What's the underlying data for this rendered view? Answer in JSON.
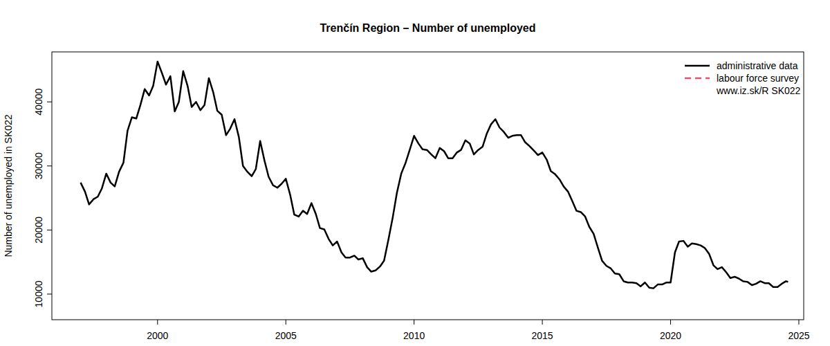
{
  "chart_data": {
    "type": "line",
    "title": "Trenčín Region – Number of unemployed",
    "y_label": "Number of unemployed in SK022",
    "annotation": "www.iz.sk/R SK022",
    "legend": "topright",
    "xlim": [
      1995.88,
      2025.19
    ],
    "xticks": [
      2000,
      2005,
      2010,
      2015,
      2020,
      2025
    ],
    "ylim": [
      6000,
      47800
    ],
    "yticks": [
      10000,
      20000,
      30000,
      40000
    ],
    "x": [
      1997,
      1997.17,
      1997.33,
      1997.5,
      1997.67,
      1997.83,
      1998,
      1998.17,
      1998.33,
      1998.5,
      1998.67,
      1998.83,
      1999,
      1999.17,
      1999.33,
      1999.5,
      1999.67,
      1999.83,
      2000,
      2000.17,
      2000.33,
      2000.5,
      2000.67,
      2000.83,
      2001,
      2001.17,
      2001.33,
      2001.5,
      2001.67,
      2001.83,
      2002,
      2002.17,
      2002.33,
      2002.5,
      2002.67,
      2002.83,
      2003,
      2003.17,
      2003.33,
      2003.5,
      2003.67,
      2003.83,
      2004,
      2004.17,
      2004.33,
      2004.5,
      2004.67,
      2004.83,
      2005,
      2005.17,
      2005.33,
      2005.5,
      2005.67,
      2005.83,
      2006,
      2006.17,
      2006.33,
      2006.5,
      2006.67,
      2006.83,
      2007,
      2007.17,
      2007.33,
      2007.5,
      2007.67,
      2007.83,
      2008,
      2008.17,
      2008.33,
      2008.5,
      2008.67,
      2008.83,
      2009,
      2009.17,
      2009.33,
      2009.5,
      2009.67,
      2009.83,
      2010,
      2010.17,
      2010.33,
      2010.5,
      2010.67,
      2010.83,
      2011,
      2011.17,
      2011.33,
      2011.5,
      2011.67,
      2011.83,
      2012,
      2012.17,
      2012.33,
      2012.5,
      2012.67,
      2012.83,
      2013,
      2013.17,
      2013.33,
      2013.5,
      2013.67,
      2013.83,
      2014,
      2014.17,
      2014.33,
      2014.5,
      2014.67,
      2014.83,
      2015,
      2015.17,
      2015.33,
      2015.5,
      2015.67,
      2015.83,
      2016,
      2016.17,
      2016.33,
      2016.5,
      2016.67,
      2016.83,
      2017,
      2017.17,
      2017.33,
      2017.5,
      2017.67,
      2017.83,
      2018,
      2018.17,
      2018.33,
      2018.5,
      2018.67,
      2018.83,
      2019,
      2019.17,
      2019.33,
      2019.5,
      2019.67,
      2019.83,
      2020,
      2020.17,
      2020.33,
      2020.5,
      2020.67,
      2020.83,
      2021,
      2021.17,
      2021.33,
      2021.5,
      2021.67,
      2021.83,
      2022,
      2022.17,
      2022.33,
      2022.5,
      2022.67,
      2022.83,
      2023,
      2023.17,
      2023.33,
      2023.5,
      2023.67,
      2023.83,
      2024,
      2024.17,
      2024.33,
      2024.5,
      2024.58
    ],
    "series": [
      {
        "name": "administrative data",
        "color": "#000000",
        "line_style": "solid",
        "values": [
          27400,
          26000,
          24000,
          24800,
          25200,
          26500,
          28800,
          27400,
          26800,
          29100,
          30500,
          35500,
          37600,
          37400,
          39500,
          42000,
          41000,
          42500,
          46300,
          44500,
          42700,
          44000,
          38500,
          40000,
          44800,
          42500,
          39200,
          40000,
          38700,
          39500,
          43700,
          41500,
          38600,
          38000,
          34800,
          35800,
          37300,
          34500,
          30000,
          29100,
          28400,
          29500,
          33900,
          30800,
          28300,
          27000,
          26600,
          27200,
          28000,
          25500,
          22400,
          22100,
          23000,
          22500,
          24200,
          22500,
          20300,
          20100,
          18600,
          17600,
          18200,
          16500,
          15700,
          15700,
          16000,
          15400,
          15600,
          14200,
          13500,
          13700,
          14300,
          15200,
          18500,
          22000,
          25800,
          28800,
          30500,
          32500,
          34700,
          33500,
          32600,
          32500,
          31800,
          31200,
          32800,
          32300,
          31200,
          31200,
          32100,
          32500,
          34000,
          33500,
          31800,
          32500,
          33000,
          35000,
          36500,
          37300,
          36000,
          35300,
          34400,
          34700,
          34800,
          34800,
          33700,
          33100,
          32400,
          31700,
          32100,
          31000,
          29200,
          28700,
          27900,
          26800,
          26000,
          24500,
          23000,
          22800,
          22100,
          20500,
          19400,
          17200,
          15200,
          14400,
          14000,
          13200,
          13100,
          12000,
          11800,
          11800,
          11700,
          11200,
          11800,
          11000,
          10900,
          11500,
          11500,
          11800,
          11800,
          16500,
          18200,
          18300,
          17400,
          17900,
          17800,
          17600,
          17200,
          16300,
          14500,
          13900,
          14200,
          13400,
          12500,
          12700,
          12400,
          12000,
          11900,
          11400,
          11600,
          12000,
          11700,
          11700,
          11100,
          11100,
          11600,
          12000,
          11900
        ]
      },
      {
        "name": "labour force survey",
        "color": "#df536b",
        "line_style": "dashed",
        "x": [],
        "values": []
      }
    ]
  }
}
